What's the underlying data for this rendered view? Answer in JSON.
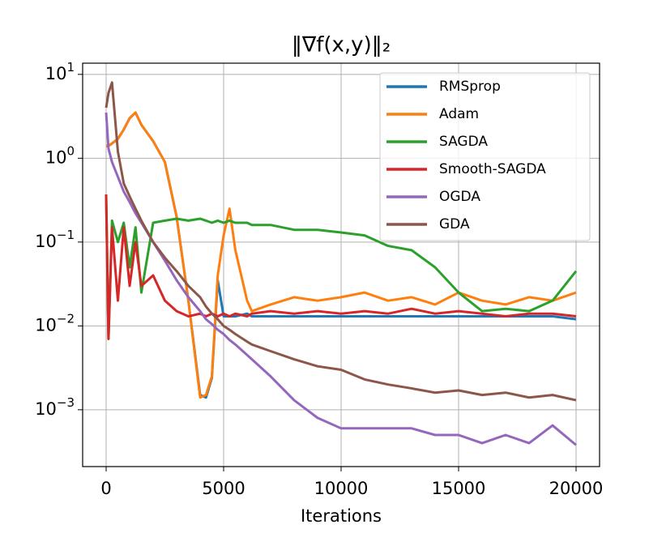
{
  "chart_data": {
    "type": "line",
    "title": "‖∇f(x,y)‖₂",
    "x_label": "Iterations",
    "log_y": true,
    "grid": true,
    "legend_position": "upper-right",
    "xlim": [
      -1000,
      21000
    ],
    "xticks": [
      0,
      5000,
      10000,
      15000,
      20000
    ],
    "ylim": [
      0.00021,
      13.6
    ],
    "yticks": [
      {
        "value": 0.001,
        "label": "10^−3"
      },
      {
        "value": 0.01,
        "label": "10^−2"
      },
      {
        "value": 0.1,
        "label": "10^−1"
      },
      {
        "value": 1,
        "label": "10^0"
      },
      {
        "value": 10,
        "label": "10^1"
      }
    ],
    "x": [
      0,
      100,
      250,
      500,
      750,
      1000,
      1250,
      1500,
      2000,
      2500,
      3000,
      3500,
      4000,
      4250,
      4500,
      4750,
      5000,
      5250,
      5500,
      6000,
      6200,
      7000,
      8000,
      9000,
      10000,
      11000,
      12000,
      13000,
      14000,
      15000,
      16000,
      17000,
      18000,
      19000,
      20000
    ],
    "series": [
      {
        "name": "RMSprop",
        "color": "#1f77b4",
        "values": [
          1.4,
          1.4,
          1.5,
          1.7,
          2.2,
          3.0,
          3.5,
          2.5,
          1.6,
          0.9,
          0.2,
          0.02,
          0.0015,
          0.0014,
          0.0024,
          0.035,
          0.013,
          0.013,
          0.013,
          0.014,
          0.013,
          0.013,
          0.013,
          0.013,
          0.013,
          0.013,
          0.013,
          0.013,
          0.013,
          0.013,
          0.013,
          0.013,
          0.013,
          0.013,
          0.012
        ]
      },
      {
        "name": "Adam",
        "color": "#ff7f0e",
        "values": [
          1.4,
          1.4,
          1.5,
          1.7,
          2.2,
          3.0,
          3.5,
          2.5,
          1.6,
          0.9,
          0.2,
          0.02,
          0.0014,
          0.0015,
          0.0025,
          0.04,
          0.12,
          0.25,
          0.08,
          0.02,
          0.015,
          0.018,
          0.022,
          0.02,
          0.022,
          0.025,
          0.02,
          0.022,
          0.018,
          0.025,
          0.02,
          0.018,
          0.022,
          0.02,
          0.025
        ]
      },
      {
        "name": "SAGDA",
        "color": "#2ca02c",
        "values": [
          0.35,
          0.007,
          0.18,
          0.1,
          0.17,
          0.05,
          0.15,
          0.025,
          0.17,
          0.18,
          0.19,
          0.18,
          0.19,
          0.18,
          0.17,
          0.18,
          0.17,
          0.18,
          0.17,
          0.17,
          0.16,
          0.16,
          0.14,
          0.14,
          0.13,
          0.12,
          0.09,
          0.08,
          0.05,
          0.025,
          0.015,
          0.016,
          0.015,
          0.02,
          0.045
        ]
      },
      {
        "name": "Smooth-SAGDA",
        "color": "#d62728",
        "values": [
          0.37,
          0.007,
          0.15,
          0.02,
          0.15,
          0.03,
          0.1,
          0.03,
          0.04,
          0.02,
          0.015,
          0.013,
          0.014,
          0.013,
          0.014,
          0.013,
          0.014,
          0.013,
          0.014,
          0.013,
          0.014,
          0.015,
          0.014,
          0.015,
          0.014,
          0.015,
          0.014,
          0.016,
          0.014,
          0.015,
          0.014,
          0.013,
          0.014,
          0.014,
          0.013
        ]
      },
      {
        "name": "OGDA",
        "color": "#9467bd",
        "values": [
          3.5,
          1.3,
          0.9,
          0.6,
          0.4,
          0.3,
          0.22,
          0.17,
          0.1,
          0.06,
          0.035,
          0.022,
          0.015,
          0.012,
          0.0105,
          0.009,
          0.008,
          0.0068,
          0.006,
          0.0045,
          0.004,
          0.0025,
          0.0013,
          0.0008,
          0.0006,
          0.0006,
          0.0006,
          0.0006,
          0.0005,
          0.0005,
          0.0004,
          0.0005,
          0.0004,
          0.00065,
          0.00038
        ]
      },
      {
        "name": "GDA",
        "color": "#8c564b",
        "values": [
          4,
          6,
          8,
          1.2,
          0.5,
          0.35,
          0.25,
          0.18,
          0.1,
          0.065,
          0.045,
          0.03,
          0.022,
          0.017,
          0.014,
          0.012,
          0.01,
          0.009,
          0.008,
          0.0065,
          0.006,
          0.005,
          0.004,
          0.0033,
          0.003,
          0.0023,
          0.002,
          0.0018,
          0.0016,
          0.0017,
          0.0015,
          0.0016,
          0.0014,
          0.0015,
          0.0013
        ]
      }
    ]
  }
}
